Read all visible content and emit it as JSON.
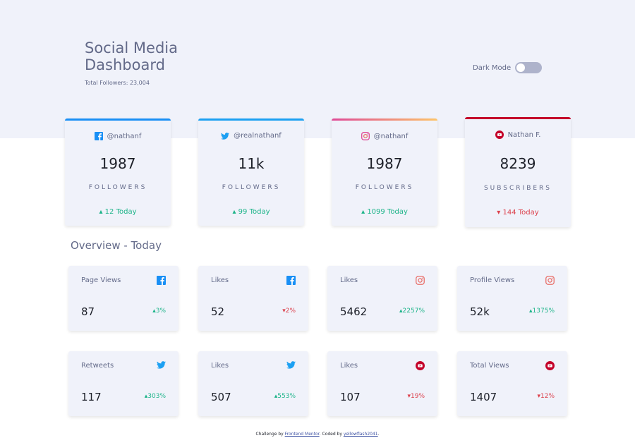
{
  "header": {
    "title": "Social Media Dashboard",
    "subtitle": "Total Followers: 23,004",
    "dark_mode_label": "Dark Mode"
  },
  "colors": {
    "facebook": "#198ff5",
    "twitter": "#1ca0f2",
    "instagram": "#df4996",
    "youtube": "#c4032a",
    "up": "#1db489",
    "down": "#dc414c"
  },
  "cards": [
    {
      "icon": "facebook-icon",
      "handle": "@nathanf",
      "count": "1987",
      "label": "FOLLOWERS",
      "today": "▴ 12 Today",
      "trend": "up"
    },
    {
      "icon": "twitter-icon",
      "handle": "@realnathanf",
      "count": "11k",
      "label": "FOLLOWERS",
      "today": "▴ 99 Today",
      "trend": "up"
    },
    {
      "icon": "instagram-icon",
      "handle": "@nathanf",
      "count": "1987",
      "label": "FOLLOWERS",
      "today": "▴ 1099 Today",
      "trend": "up"
    },
    {
      "icon": "youtube-icon",
      "handle": "Nathan F.",
      "count": "8239",
      "label": "SUBSCRIBERS",
      "today": "▾ 144 Today",
      "trend": "down"
    }
  ],
  "overview": {
    "title": "Overview - Today",
    "items": [
      {
        "label": "Page Views",
        "icon": "facebook-icon",
        "value": "87",
        "change": "▴3%",
        "trend": "up"
      },
      {
        "label": "Likes",
        "icon": "facebook-icon",
        "value": "52",
        "change": "▾2%",
        "trend": "down"
      },
      {
        "label": "Likes",
        "icon": "instagram-icon",
        "value": "5462",
        "change": "▴2257%",
        "trend": "up"
      },
      {
        "label": "Profile Views",
        "icon": "instagram-icon",
        "value": "52k",
        "change": "▴1375%",
        "trend": "up"
      },
      {
        "label": "Retweets",
        "icon": "twitter-icon",
        "value": "117",
        "change": "▴303%",
        "trend": "up"
      },
      {
        "label": "Likes",
        "icon": "twitter-icon",
        "value": "507",
        "change": "▴553%",
        "trend": "up"
      },
      {
        "label": "Likes",
        "icon": "youtube-icon",
        "value": "107",
        "change": "▾19%",
        "trend": "down"
      },
      {
        "label": "Total Views",
        "icon": "youtube-icon",
        "value": "1407",
        "change": "▾12%",
        "trend": "down"
      }
    ]
  },
  "footer": {
    "prefix": "Challenge by",
    "link1": "Frontend Mentor",
    "middle": ". Coded by",
    "link2": "yellowflash2041",
    "suffix": "."
  }
}
